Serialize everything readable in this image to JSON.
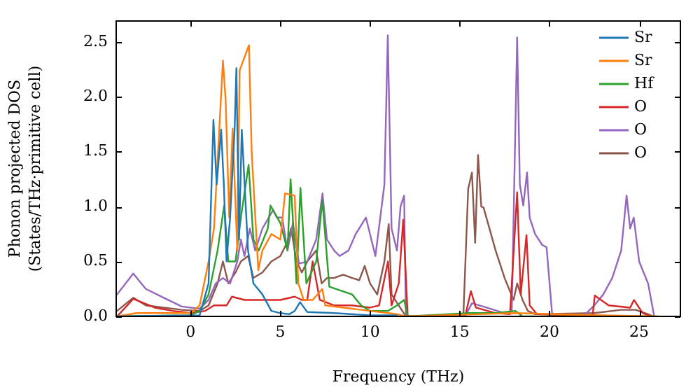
{
  "chart_data": {
    "type": "line",
    "xlabel": "Frequency (THz)",
    "ylabel": "Phonon projected DOS\n(States/THz·primitive cell)",
    "xlim": [
      -4.15,
      27.3
    ],
    "ylim": [
      0,
      2.69
    ],
    "xticks": [
      0,
      5,
      10,
      15,
      20,
      25
    ],
    "yticks": [
      {
        "value": 0,
        "label": "0.0"
      },
      0.5,
      {
        "value": 1,
        "label": "1.0"
      },
      1.5,
      {
        "value": 2,
        "label": "2.0"
      },
      2.5
    ],
    "grid": false,
    "legend": "top right",
    "marker": "none",
    "line_style": "solid",
    "series": [
      {
        "name": "Sr",
        "color": "#1f77b4",
        "x": [
          -4.1,
          0.5,
          1.0,
          1.27,
          1.45,
          1.7,
          1.85,
          2.0,
          2.2,
          2.45,
          2.55,
          2.7,
          2.85,
          3.2,
          3.5,
          4.0,
          4.5,
          5.0,
          5.5,
          5.8,
          6.1,
          6.5,
          8,
          10,
          11.5
        ],
        "values": [
          0,
          0.01,
          0.3,
          1.79,
          1.2,
          1.7,
          1.2,
          0.5,
          0.9,
          1.7,
          2.26,
          0.7,
          1.7,
          0.6,
          0.3,
          0.2,
          0.05,
          0.03,
          0.02,
          0.05,
          0.13,
          0.04,
          0.03,
          0.01,
          0.01
        ]
      },
      {
        "name": "Sr",
        "color": "#ff7f0e",
        "x": [
          -4.1,
          -3,
          0,
          0.5,
          1.0,
          1.3,
          1.8,
          1.95,
          2.15,
          2.34,
          2.6,
          2.73,
          3.25,
          3.4,
          3.77,
          4.0,
          4.5,
          5.0,
          5.26,
          5.8,
          6.0,
          6.3,
          6.8,
          7.34,
          7.5,
          9,
          10,
          11,
          11.5,
          12,
          16,
          18,
          23,
          26
        ],
        "values": [
          0,
          0.03,
          0.03,
          0.1,
          0.5,
          0.8,
          2.33,
          1.97,
          0.9,
          1.71,
          0.6,
          2.24,
          2.47,
          1.5,
          0.42,
          0.6,
          0.75,
          0.7,
          1.12,
          1.1,
          0.3,
          0.15,
          0.15,
          0.25,
          0.1,
          0.07,
          0.05,
          0.03,
          0.02,
          0,
          0.02,
          0.03,
          0.01,
          0
        ]
      },
      {
        "name": "Hf",
        "color": "#2ca02c",
        "x": [
          -4.1,
          0,
          0.5,
          1.0,
          1.5,
          1.87,
          2.1,
          2.5,
          2.8,
          3.23,
          3.5,
          3.8,
          4.3,
          4.45,
          5.0,
          5.4,
          5.57,
          5.9,
          6.12,
          6.45,
          7.0,
          7.34,
          7.73,
          9,
          9.5,
          10,
          11,
          11.5,
          11.9,
          12.1,
          15.5,
          17,
          18.1,
          18.5,
          26
        ],
        "values": [
          0,
          0.01,
          0.05,
          0.2,
          0.6,
          1.01,
          0.5,
          0.5,
          0.9,
          1.38,
          0.7,
          0.6,
          0.8,
          1.01,
          0.85,
          0.6,
          1.25,
          0.3,
          1.17,
          0.3,
          0.5,
          1.06,
          0.27,
          0.2,
          0.1,
          0.05,
          0.05,
          0.1,
          0.15,
          0,
          0.03,
          0.03,
          0.05,
          0,
          0
        ]
      },
      {
        "name": "O",
        "color": "#d62728",
        "x": [
          -4.1,
          -3.2,
          -2,
          -1,
          0,
          0.8,
          1.3,
          2,
          2.3,
          3,
          4,
          5,
          5.8,
          6.2,
          6.5,
          6.8,
          7.2,
          8,
          9,
          10,
          10.5,
          11.0,
          11.2,
          11.6,
          11.85,
          12.1,
          15.3,
          15.62,
          15.9,
          17,
          17.8,
          18.2,
          18.4,
          18.72,
          18.9,
          19.3,
          22.4,
          22.53,
          23.3,
          24.5,
          24.71,
          25.2,
          25.7
        ],
        "values": [
          0,
          0.16,
          0.08,
          0.05,
          0.03,
          0.05,
          0.1,
          0.1,
          0.18,
          0.15,
          0.15,
          0.15,
          0.18,
          0.15,
          0.15,
          0.5,
          0.15,
          0.1,
          0.1,
          0.08,
          0.1,
          0.5,
          0.1,
          0.3,
          0.88,
          0,
          0,
          0.23,
          0.08,
          0.03,
          0.02,
          1.13,
          0.2,
          0.74,
          0.1,
          0.02,
          0,
          0.19,
          0.1,
          0.08,
          0.15,
          0.03,
          0
        ]
      },
      {
        "name": "O",
        "color": "#9467bd",
        "x": [
          -4.1,
          -3.2,
          -2.5,
          -1.5,
          -0.5,
          0.5,
          1.0,
          1.4,
          1.8,
          2.2,
          2.6,
          2.8,
          3.0,
          3.3,
          3.6,
          4.0,
          4.6,
          4.8,
          5.1,
          5.4,
          5.7,
          6.04,
          6.5,
          7.0,
          7.35,
          7.6,
          8.0,
          8.3,
          8.8,
          9.2,
          9.77,
          10.3,
          10.8,
          10.99,
          11.2,
          11.5,
          11.7,
          11.9,
          12.0,
          15.3,
          15.68,
          16.5,
          17.5,
          17.9,
          18.2,
          18.35,
          18.54,
          18.75,
          18.9,
          19.2,
          19.6,
          19.84,
          20.16,
          22,
          22.5,
          23,
          23.5,
          24.0,
          24.3,
          24.5,
          24.7,
          25.0,
          25.5,
          25.84
        ],
        "values": [
          0.2,
          0.39,
          0.25,
          0.17,
          0.09,
          0.07,
          0.15,
          0.3,
          0.35,
          0.3,
          0.5,
          0.7,
          0.55,
          0.8,
          0.6,
          0.8,
          0.97,
          0.9,
          0.9,
          0.6,
          0.85,
          0.48,
          0.5,
          0.7,
          1.12,
          0.7,
          0.6,
          0.55,
          0.6,
          0.75,
          0.9,
          0.55,
          1.2,
          2.56,
          0.8,
          0.6,
          1.0,
          1.1,
          0,
          0,
          0.12,
          0.08,
          0.03,
          0.05,
          2.54,
          1.2,
          1.01,
          1.31,
          0.9,
          0.75,
          0.65,
          0.63,
          0,
          0.02,
          0.1,
          0.2,
          0.35,
          0.6,
          1.1,
          0.8,
          0.9,
          0.5,
          0.3,
          0
        ]
      },
      {
        "name": "O",
        "color": "#8c564b",
        "x": [
          -4.1,
          -3.2,
          -2.5,
          -1.5,
          -0.5,
          0.5,
          1.0,
          1.5,
          1.8,
          2.1,
          2.5,
          2.8,
          3.2,
          3.5,
          4,
          4.5,
          5.0,
          5.4,
          5.6,
          5.9,
          6.2,
          6.5,
          7,
          7.3,
          7.6,
          8.0,
          8.5,
          9,
          9.4,
          9.7,
          10.0,
          10.4,
          10.8,
          11.04,
          11.2,
          11.6,
          12.0,
          15.2,
          15.47,
          15.68,
          15.86,
          16.02,
          16.2,
          16.33,
          17,
          17.5,
          18,
          18.2,
          18.5,
          18.8,
          19.2,
          22.5,
          24,
          24.8,
          25.5,
          25.8
        ],
        "values": [
          0.05,
          0.17,
          0.1,
          0.08,
          0.06,
          0.05,
          0.1,
          0.3,
          0.5,
          0.3,
          0.4,
          0.5,
          0.55,
          0.35,
          0.4,
          0.5,
          0.55,
          0.68,
          0.8,
          0.5,
          0.4,
          0.5,
          0.6,
          0.3,
          0.35,
          0.35,
          0.38,
          0.35,
          0.33,
          0.46,
          0.3,
          0.2,
          0.5,
          0.84,
          0.2,
          0.1,
          0,
          0,
          1.16,
          1.31,
          0.67,
          1.47,
          1.0,
          0.99,
          0.6,
          0.35,
          0.15,
          0.3,
          0.15,
          0.05,
          0.02,
          0.03,
          0.06,
          0.06,
          0.02,
          0
        ]
      }
    ]
  }
}
